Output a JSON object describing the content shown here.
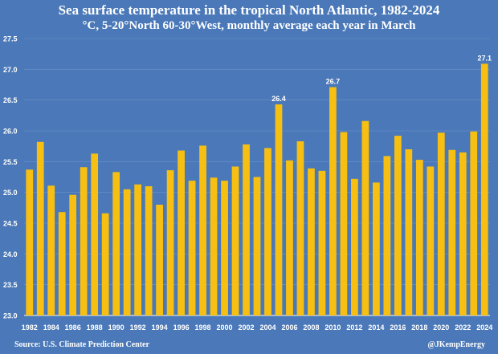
{
  "title": "Sea surface temperature in the tropical North Atlantic, 1982-2024",
  "subtitle": "°C, 5-20°North 60-30°West, monthly average each year in March",
  "source": "Source: U.S. Climate Prediction Center",
  "credit": "@JKempEnergy",
  "colors": {
    "background": "#4a78b8",
    "bar": "#f6bf12",
    "text": "#ffffff",
    "grid": "#6e95cc"
  },
  "chart_data": {
    "type": "bar",
    "title": "Sea surface temperature in the tropical North Atlantic, 1982-2024",
    "subtitle": "°C, 5-20°North 60-30°West, monthly average each year in March",
    "xlabel": "",
    "ylabel": "",
    "ylim": [
      23.0,
      27.5
    ],
    "yticks": [
      "23.0",
      "23.5",
      "24.0",
      "24.5",
      "25.0",
      "25.5",
      "26.0",
      "26.5",
      "27.0",
      "27.5"
    ],
    "grid": true,
    "legend": "none",
    "x_tick_labels": [
      "1982",
      "1984",
      "1986",
      "1988",
      "1990",
      "1992",
      "1994",
      "1996",
      "1998",
      "2000",
      "2002",
      "2004",
      "2006",
      "2008",
      "2010",
      "2012",
      "2014",
      "2016",
      "2018",
      "2020",
      "2022",
      "2024"
    ],
    "categories": [
      "1982",
      "1983",
      "1984",
      "1985",
      "1986",
      "1987",
      "1988",
      "1989",
      "1990",
      "1991",
      "1992",
      "1993",
      "1994",
      "1995",
      "1996",
      "1997",
      "1998",
      "1999",
      "2000",
      "2001",
      "2002",
      "2003",
      "2004",
      "2005",
      "2006",
      "2007",
      "2008",
      "2009",
      "2010",
      "2011",
      "2012",
      "2013",
      "2014",
      "2015",
      "2016",
      "2017",
      "2018",
      "2019",
      "2020",
      "2021",
      "2022",
      "2023",
      "2024"
    ],
    "values": [
      25.37,
      25.82,
      25.11,
      24.68,
      24.96,
      25.41,
      25.63,
      24.66,
      25.33,
      25.05,
      25.13,
      25.1,
      24.8,
      25.36,
      25.68,
      25.19,
      25.76,
      25.24,
      25.19,
      25.42,
      25.78,
      25.25,
      25.72,
      26.43,
      25.52,
      25.83,
      25.39,
      25.35,
      26.71,
      25.98,
      25.22,
      26.16,
      25.16,
      25.59,
      25.92,
      25.7,
      25.53,
      25.42,
      25.97,
      25.69,
      25.65,
      25.99,
      27.09
    ],
    "data_labels": [
      {
        "category": "2005",
        "text": "26.4"
      },
      {
        "category": "2010",
        "text": "26.7"
      },
      {
        "category": "2024",
        "text": "27.1"
      }
    ]
  }
}
